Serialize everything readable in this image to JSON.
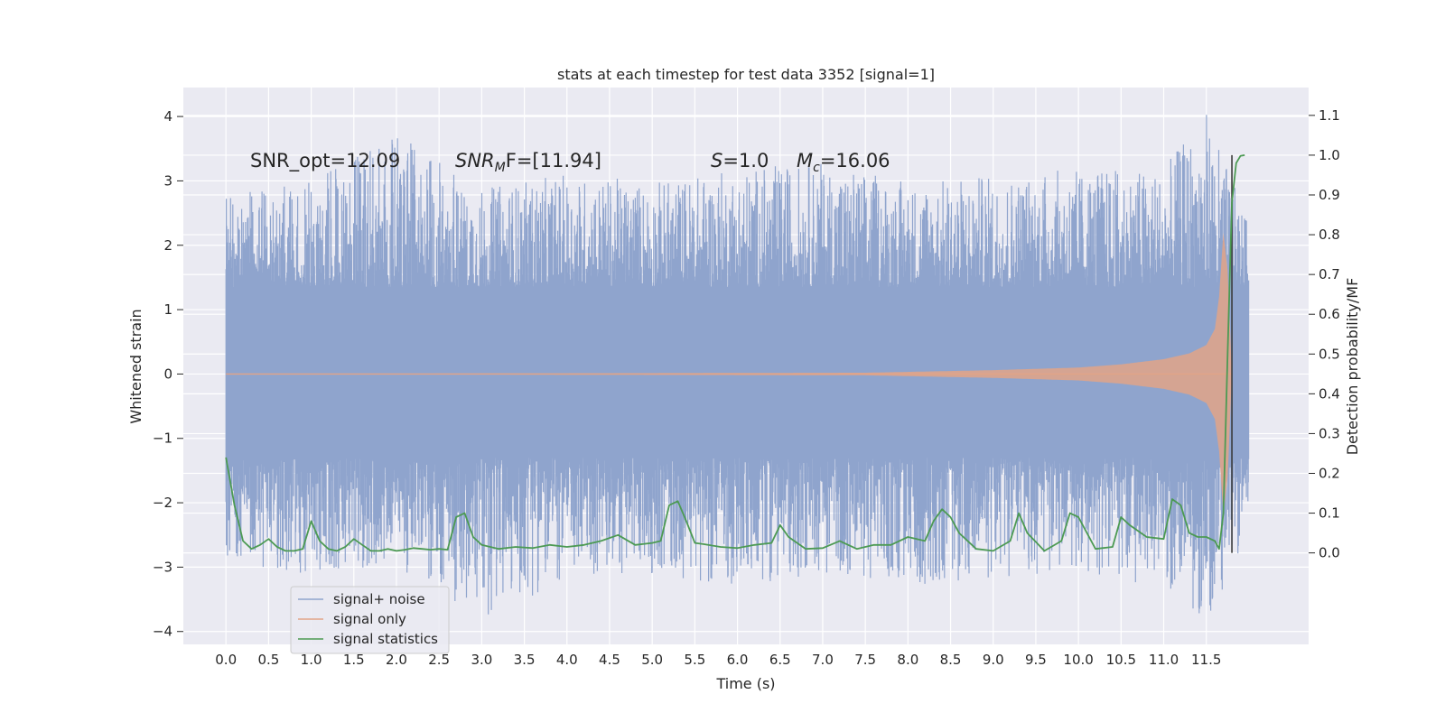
{
  "chart_data": {
    "type": "line",
    "title": "stats at each timestep for test data 3352 [signal=1]",
    "xlabel": "Time (s)",
    "ylabel": "Whitened strain",
    "y2label": "Detection probability/MF",
    "xlim": [
      -0.5,
      12.7
    ],
    "ylim": [
      -4.2,
      4.45
    ],
    "y2lim": [
      -0.23,
      1.17
    ],
    "xticks": [
      "0.0",
      "0.5",
      "1.0",
      "1.5",
      "2.0",
      "2.5",
      "3.0",
      "3.5",
      "4.0",
      "4.5",
      "5.0",
      "5.5",
      "6.0",
      "6.5",
      "7.0",
      "7.5",
      "8.0",
      "8.5",
      "9.0",
      "9.5",
      "10.0",
      "10.5",
      "11.0",
      "11.5"
    ],
    "yticks": [
      "4",
      "3",
      "2",
      "1",
      "0",
      "−1",
      "−2",
      "−3",
      "−4"
    ],
    "y2ticks": [
      "1.1",
      "1.0",
      "0.9",
      "0.8",
      "0.7",
      "0.6",
      "0.5",
      "0.4",
      "0.3",
      "0.2",
      "0.1",
      "0.0"
    ],
    "grid": true,
    "legend_position": "lower-left",
    "annotations": {
      "snr_opt": "SNR_opt=12.09",
      "snr_mf_prefix": "SNR",
      "snr_mf_sub": "M",
      "snr_mf_suffix": "F=[11.94]",
      "s_var": "S",
      "s_value": "=1.0",
      "mc_var": "M",
      "mc_sub": "c",
      "mc_value": "=16.06"
    },
    "series": [
      {
        "name": "signal+ noise",
        "color": "#8fa4cd",
        "axis": "left",
        "envelope": {
          "x": [
            0.0,
            1.0,
            2.0,
            3.0,
            4.0,
            5.0,
            6.0,
            7.0,
            8.0,
            9.0,
            10.0,
            11.0,
            11.5,
            12.0
          ],
          "upper": [
            2.8,
            3.0,
            3.8,
            2.9,
            3.1,
            3.0,
            3.2,
            3.3,
            3.0,
            3.1,
            3.2,
            3.2,
            4.1,
            2.3
          ],
          "lower": [
            -3.0,
            -3.1,
            -3.0,
            -3.8,
            -3.2,
            -3.1,
            -3.3,
            -3.1,
            -3.3,
            -3.2,
            -3.1,
            -3.3,
            -3.9,
            -2.5
          ]
        }
      },
      {
        "name": "signal only",
        "color": "#e2a487",
        "axis": "left",
        "envelope": {
          "x": [
            0.0,
            7.5,
            9.0,
            10.0,
            10.5,
            11.0,
            11.3,
            11.5,
            11.6,
            11.65,
            11.7,
            11.75,
            11.8
          ],
          "amplitude": [
            0.0,
            0.02,
            0.06,
            0.1,
            0.15,
            0.23,
            0.32,
            0.45,
            0.7,
            1.2,
            2.2,
            1.6,
            0.0
          ]
        }
      },
      {
        "name": "signal statistics",
        "color": "#4c9a53",
        "axis": "right",
        "x": [
          0.0,
          0.1,
          0.2,
          0.3,
          0.4,
          0.5,
          0.6,
          0.7,
          0.8,
          0.9,
          1.0,
          1.1,
          1.2,
          1.3,
          1.4,
          1.5,
          1.6,
          1.7,
          1.8,
          1.9,
          2.0,
          2.1,
          2.2,
          2.3,
          2.4,
          2.5,
          2.6,
          2.7,
          2.8,
          2.9,
          3.0,
          3.2,
          3.4,
          3.6,
          3.8,
          4.0,
          4.2,
          4.4,
          4.6,
          4.8,
          5.0,
          5.1,
          5.2,
          5.3,
          5.4,
          5.5,
          5.6,
          5.8,
          6.0,
          6.2,
          6.4,
          6.5,
          6.6,
          6.8,
          7.0,
          7.2,
          7.4,
          7.6,
          7.8,
          8.0,
          8.2,
          8.3,
          8.4,
          8.5,
          8.6,
          8.8,
          9.0,
          9.2,
          9.3,
          9.4,
          9.6,
          9.8,
          9.9,
          10.0,
          10.2,
          10.4,
          10.5,
          10.6,
          10.8,
          11.0,
          11.1,
          11.2,
          11.3,
          11.4,
          11.5,
          11.6,
          11.65,
          11.7,
          11.75,
          11.8,
          11.85,
          11.9,
          11.95
        ],
        "values": [
          0.24,
          0.12,
          0.03,
          0.01,
          0.02,
          0.035,
          0.015,
          0.005,
          0.005,
          0.01,
          0.08,
          0.03,
          0.01,
          0.005,
          0.015,
          0.035,
          0.02,
          0.005,
          0.005,
          0.01,
          0.005,
          0.008,
          0.012,
          0.01,
          0.008,
          0.01,
          0.008,
          0.09,
          0.1,
          0.04,
          0.02,
          0.01,
          0.015,
          0.012,
          0.02,
          0.015,
          0.02,
          0.03,
          0.045,
          0.02,
          0.025,
          0.03,
          0.12,
          0.13,
          0.08,
          0.025,
          0.022,
          0.015,
          0.012,
          0.02,
          0.025,
          0.07,
          0.04,
          0.01,
          0.012,
          0.03,
          0.01,
          0.02,
          0.02,
          0.04,
          0.03,
          0.08,
          0.11,
          0.09,
          0.05,
          0.01,
          0.005,
          0.03,
          0.1,
          0.05,
          0.005,
          0.03,
          0.1,
          0.09,
          0.01,
          0.015,
          0.09,
          0.07,
          0.04,
          0.035,
          0.135,
          0.12,
          0.05,
          0.04,
          0.04,
          0.03,
          0.01,
          0.1,
          0.5,
          0.88,
          0.98,
          0.998,
          1.0
        ]
      }
    ],
    "vertical_line": {
      "x": 11.8,
      "color": "#3a3a3a"
    }
  }
}
